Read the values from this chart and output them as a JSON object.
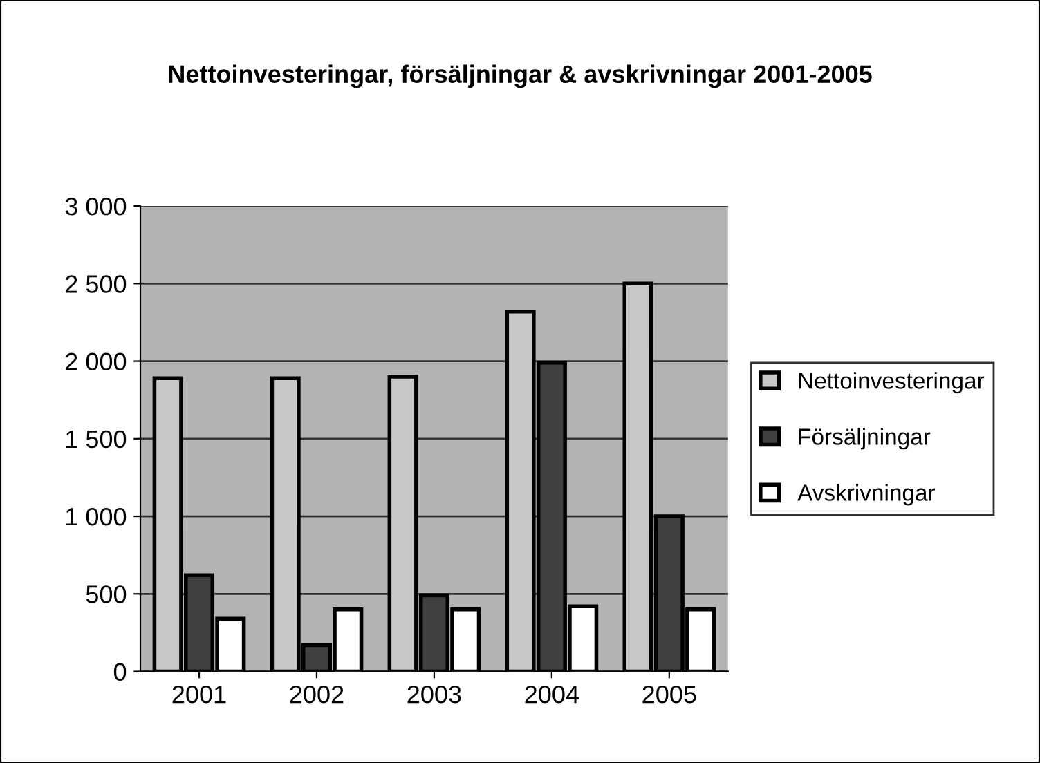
{
  "chart_data": {
    "type": "bar",
    "title": "Nettoinvesteringar, försäljningar & avskrivningar 2001-2005",
    "categories": [
      "2001",
      "2002",
      "2003",
      "2004",
      "2005"
    ],
    "series": [
      {
        "name": "Nettoinvesteringar",
        "color": "#c8c8c8",
        "values": [
          1890,
          1890,
          1900,
          2320,
          2500
        ]
      },
      {
        "name": "Försäljningar",
        "color": "#404040",
        "values": [
          620,
          170,
          490,
          1990,
          1000
        ]
      },
      {
        "name": "Avskrivningar",
        "color": "#ffffff",
        "values": [
          340,
          400,
          400,
          420,
          400
        ]
      }
    ],
    "ylim": [
      0,
      3000
    ],
    "yticks": [
      0,
      {
        "value": 500,
        "label": "500"
      },
      {
        "value": 1000,
        "label": "1 000"
      },
      {
        "value": 1500,
        "label": "1 500"
      },
      {
        "value": 2000,
        "label": "2 000"
      },
      {
        "value": 2500,
        "label": "2 500"
      },
      {
        "value": 3000,
        "label": "3 000"
      }
    ],
    "grid": "y",
    "legend": "right"
  }
}
